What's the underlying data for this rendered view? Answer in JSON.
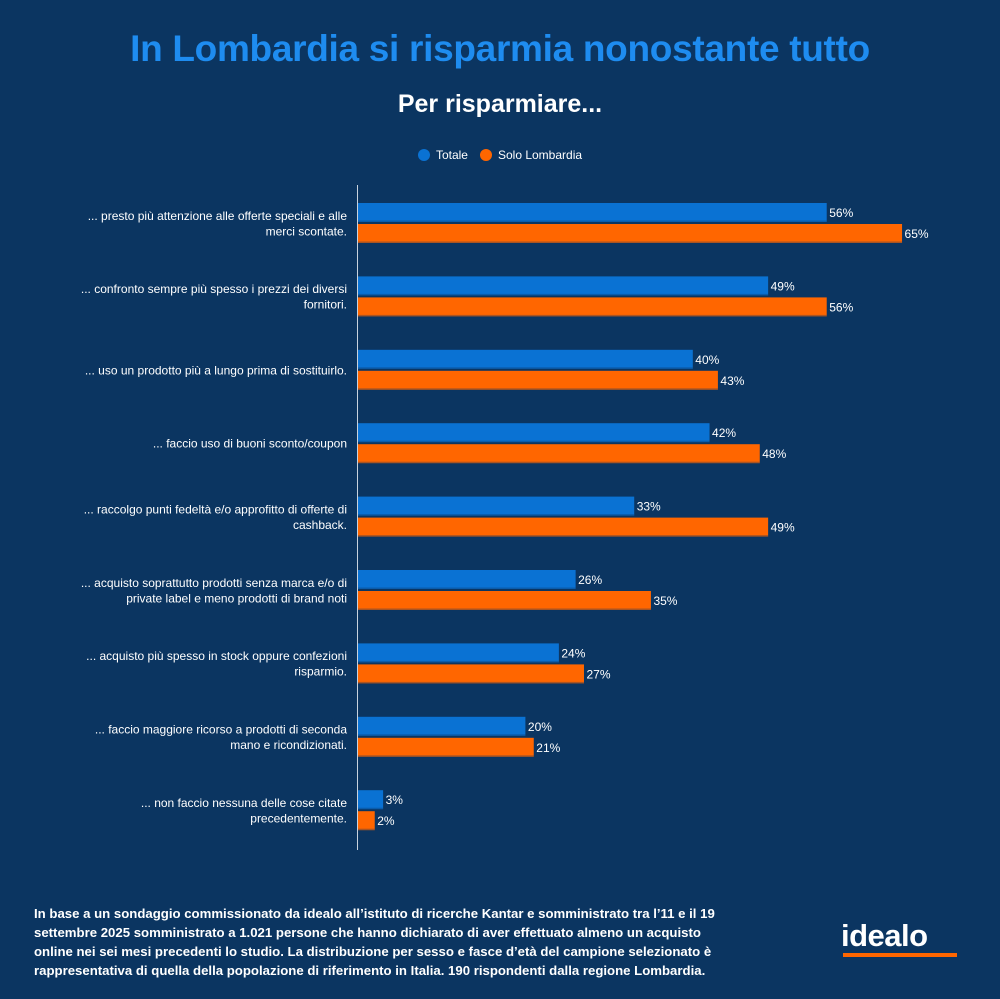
{
  "header": {
    "title": "In Lombardia si risparmia nonostante tutto",
    "subtitle": "Per risparmiare..."
  },
  "colors": {
    "background": "#0b3561",
    "title": "#1e8cf0",
    "totale": "#0a72d3",
    "lombardia": "#ff6600",
    "axis": "#c8d2de"
  },
  "chart_data": {
    "type": "bar",
    "orientation": "horizontal",
    "title": "In Lombardia si risparmia nonostante tutto",
    "subtitle": "Per risparmiare...",
    "xlabel": "",
    "ylabel": "",
    "xlim": [
      0,
      65
    ],
    "grid": false,
    "legend_position": "top-center",
    "value_suffix": "%",
    "categories": [
      "... presto più attenzione alle offerte speciali e alle merci scontate.",
      "... confronto sempre più spesso i prezzi dei diversi fornitori.",
      "... uso un prodotto più a lungo prima di sostituirlo.",
      "... faccio uso di buoni sconto/coupon",
      "... raccolgo punti fedeltà e/o approfitto di offerte di cashback.",
      "... acquisto soprattutto prodotti senza marca e/o di private label e meno prodotti di brand noti",
      "... acquisto più spesso in stock oppure confezioni risparmio.",
      "... faccio maggiore ricorso a prodotti di seconda mano e ricondizionati.",
      "... non faccio nessuna delle cose citate precedentemente."
    ],
    "category_lines": [
      [
        "... presto più attenzione alle offerte speciali e alle",
        "merci scontate."
      ],
      [
        "... confronto sempre più spesso i prezzi dei diversi",
        "fornitori."
      ],
      [
        "... uso un prodotto più a lungo prima di sostituirlo."
      ],
      [
        "... faccio uso di buoni sconto/coupon"
      ],
      [
        "... raccolgo punti fedeltà e/o approfitto di offerte di",
        "cashback."
      ],
      [
        "... acquisto soprattutto prodotti senza marca e/o di",
        "private label e meno prodotti di brand noti"
      ],
      [
        "... acquisto più spesso in stock oppure confezioni",
        "risparmio."
      ],
      [
        "... faccio maggiore ricorso a prodotti di seconda",
        "mano e ricondizionati."
      ],
      [
        "... non faccio nessuna delle cose citate",
        "precedentemente."
      ]
    ],
    "series": [
      {
        "name": "Totale",
        "color": "#0a72d3",
        "values": [
          56,
          49,
          40,
          42,
          33,
          26,
          24,
          20,
          3
        ]
      },
      {
        "name": "Solo Lombardia",
        "color": "#ff6600",
        "values": [
          65,
          56,
          43,
          48,
          49,
          35,
          27,
          21,
          2
        ]
      }
    ]
  },
  "legend": [
    {
      "label": "Totale",
      "color": "#0a72d3"
    },
    {
      "label": "Solo Lombardia",
      "color": "#ff6600"
    }
  ],
  "footer": {
    "note": "In base a un sondaggio commissionato da idealo all’istituto di ricerche Kantar e somministrato tra l’11 e il 19 settembre 2025 somministrato a 1.021 persone che hanno dichiarato di aver effettuato almeno un acquisto online nei sei mesi precedenti lo studio. La distribuzione per sesso e fasce d’età del campione selezionato è rappresentativa di quella della popolazione di riferimento in Italia. 190 rispondenti dalla regione Lombardia."
  },
  "brand": {
    "logo_text": "idealo"
  }
}
